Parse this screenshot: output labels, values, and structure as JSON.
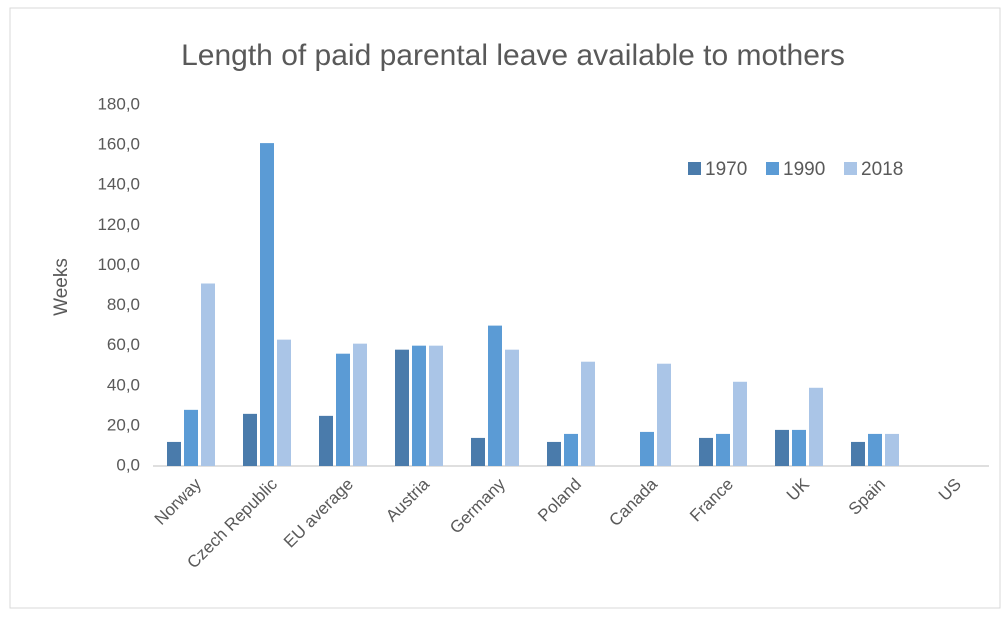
{
  "chart_data": {
    "type": "bar",
    "title": "Length of paid parental leave available to mothers",
    "y_label": "Weeks",
    "categories": [
      "Norway",
      "Czech Republic",
      "EU average",
      "Austria",
      "Germany",
      "Poland",
      "Canada",
      "France",
      "UK",
      "Spain",
      "US"
    ],
    "series": [
      {
        "name": "1970",
        "color": "#4a7bab",
        "values": [
          12,
          26,
          25,
          58,
          14,
          12,
          0,
          14,
          18,
          12,
          0
        ]
      },
      {
        "name": "1990",
        "color": "#5b9bd5",
        "values": [
          28,
          161,
          56,
          60,
          70,
          16,
          17,
          16,
          18,
          16,
          0
        ]
      },
      {
        "name": "2018",
        "color": "#aac5e7",
        "values": [
          91,
          63,
          61,
          60,
          58,
          52,
          51,
          42,
          39,
          16,
          0
        ]
      }
    ],
    "ylim": [
      0,
      180
    ],
    "yticks": [
      {
        "value": 0,
        "label": "0,0"
      },
      {
        "value": 20,
        "label": "20,0"
      },
      {
        "value": 40,
        "label": "40,0"
      },
      {
        "value": 60,
        "label": "60,0"
      },
      {
        "value": 80,
        "label": "80,0"
      },
      {
        "value": 100,
        "label": "100,0"
      },
      {
        "value": 120,
        "label": "120,0"
      },
      {
        "value": 140,
        "label": "140,0"
      },
      {
        "value": 160,
        "label": "160,0"
      },
      {
        "value": 180,
        "label": "180,0"
      }
    ],
    "legend": "top-right",
    "grid": false
  }
}
